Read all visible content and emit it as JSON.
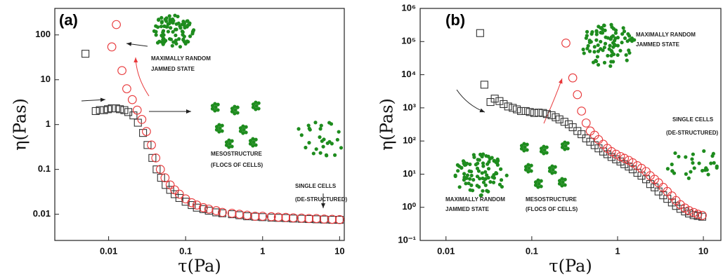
{
  "chart_data": [
    {
      "type": "scatter",
      "panel_label": "(a)",
      "x_label": "τ(Pa)",
      "y_label": "η(Pas)",
      "xscale": "log",
      "yscale": "log",
      "xlim": [
        0.002,
        11.5
      ],
      "ylim": [
        0.0026,
        390
      ],
      "xticks": [
        0.01,
        0.1,
        1,
        10
      ],
      "yticks": [
        0.01,
        0.1,
        1,
        10,
        100
      ],
      "annotations": [
        "MAXIMALLY RANDOM",
        "JAMMED STATE",
        "MESOSTRUCTURE",
        "(FLOCS OF CELLS)",
        "SINGLE CELLS",
        "(DE-STRUCTURED)"
      ],
      "series": [
        {
          "marker": "square",
          "color": "#333333",
          "x": [
            0.005,
            0.0068,
            0.0077,
            0.0087,
            0.0098,
            0.011,
            0.0125,
            0.014,
            0.016,
            0.018,
            0.021,
            0.024,
            0.028,
            0.032,
            0.037,
            0.042,
            0.048,
            0.055,
            0.063,
            0.072,
            0.083,
            0.1,
            0.12,
            0.14,
            0.17,
            0.2,
            0.25,
            0.3,
            0.4,
            0.5,
            0.63,
            0.8,
            1,
            1.3,
            1.6,
            2,
            2.5,
            3.2,
            4,
            5,
            6.3,
            8,
            10
          ],
          "values": [
            38,
            2.0,
            2.1,
            2.1,
            2.2,
            2.3,
            2.3,
            2.2,
            2.1,
            1.9,
            1.6,
            1.1,
            0.65,
            0.35,
            0.18,
            0.1,
            0.065,
            0.045,
            0.035,
            0.028,
            0.023,
            0.019,
            0.016,
            0.014,
            0.013,
            0.012,
            0.011,
            0.0105,
            0.01,
            0.0095,
            0.009,
            0.0088,
            0.0086,
            0.0084,
            0.0083,
            0.0082,
            0.008,
            0.0079,
            0.0078,
            0.0077,
            0.0076,
            0.0075,
            0.0075
          ]
        },
        {
          "marker": "circle",
          "color": "#e8383a",
          "x": [
            0.0126,
            0.011,
            0.0149,
            0.0172,
            0.0203,
            0.0235,
            0.027,
            0.031,
            0.036,
            0.041,
            0.047,
            0.054,
            0.063,
            0.072,
            0.083,
            0.1,
            0.12,
            0.14,
            0.17,
            0.2,
            0.25,
            0.3,
            0.4,
            0.5,
            0.63,
            0.8,
            1,
            1.3,
            1.6,
            2,
            2.5,
            3.2,
            4,
            5,
            6.3,
            8,
            10
          ],
          "values": [
            170,
            54,
            16,
            6.3,
            3.6,
            2.1,
            1.3,
            0.7,
            0.35,
            0.18,
            0.1,
            0.065,
            0.045,
            0.035,
            0.028,
            0.022,
            0.018,
            0.016,
            0.014,
            0.013,
            0.012,
            0.011,
            0.0105,
            0.01,
            0.0095,
            0.009,
            0.009,
            0.0088,
            0.0086,
            0.0085,
            0.0083,
            0.0082,
            0.008,
            0.008,
            0.0078,
            0.0077,
            0.0076
          ]
        }
      ]
    },
    {
      "type": "scatter",
      "panel_label": "(b)",
      "x_label": "τ(Pa)",
      "y_label": "η(Pas)",
      "xscale": "log",
      "yscale": "log",
      "xlim": [
        0.005,
        16
      ],
      "ylim": [
        0.1,
        1000000
      ],
      "xticks": [
        0.01,
        0.1,
        1,
        10
      ],
      "yticks": [
        {
          "value": 0.1,
          "label": "10⁻¹"
        },
        {
          "value": 1,
          "label": "10⁰"
        },
        {
          "value": 10,
          "label": "10¹"
        },
        {
          "value": 100,
          "label": "10²"
        },
        {
          "value": 1000,
          "label": "10³"
        },
        {
          "value": 10000,
          "label": "10⁴"
        },
        {
          "value": 100000,
          "label": "10⁵"
        },
        {
          "value": 1000000,
          "label": "10⁶"
        }
      ],
      "annotations": [
        "MAXIMALLY RANDOM",
        "JAMMED STATE",
        "SINGLE CELLS",
        "(DE-STRUCTURED)",
        "MAXIMALLY RANDOM",
        "JAMMED STATE",
        "MESOSTRUCTURE",
        "(FLOCS OF CELLS)"
      ],
      "series": [
        {
          "marker": "square",
          "color": "#333333",
          "x": [
            0.025,
            0.028,
            0.033,
            0.037,
            0.042,
            0.047,
            0.053,
            0.06,
            0.067,
            0.075,
            0.085,
            0.095,
            0.107,
            0.12,
            0.135,
            0.15,
            0.17,
            0.19,
            0.21,
            0.24,
            0.27,
            0.3,
            0.34,
            0.38,
            0.43,
            0.48,
            0.54,
            0.6,
            0.68,
            0.76,
            0.85,
            0.96,
            1.08,
            1.2,
            1.35,
            1.5,
            1.7,
            1.9,
            2.15,
            2.4,
            2.7,
            3,
            3.4,
            3.8,
            4.3,
            4.8,
            5.4,
            6.1,
            6.8,
            7.7,
            8.6,
            9.7
          ],
          "values": [
            180000,
            5000,
            1500,
            1900,
            1600,
            1300,
            1100,
            1000,
            900,
            800,
            800,
            750,
            700,
            720,
            700,
            650,
            600,
            520,
            450,
            380,
            320,
            260,
            200,
            160,
            120,
            95,
            75,
            60,
            48,
            40,
            33,
            28,
            24,
            20,
            17,
            14,
            11,
            9,
            7,
            5,
            4,
            3,
            2.3,
            1.8,
            1.4,
            1.1,
            0.9,
            0.75,
            0.65,
            0.58,
            0.55,
            0.52
          ]
        },
        {
          "marker": "circle",
          "color": "#e8383a",
          "x": [
            0.25,
            0.3,
            0.34,
            0.38,
            0.43,
            0.48,
            0.54,
            0.6,
            0.68,
            0.76,
            0.85,
            0.96,
            1.08,
            1.2,
            1.35,
            1.5,
            1.7,
            1.9,
            2.15,
            2.4,
            2.7,
            3,
            3.4,
            3.8,
            4.3,
            4.8,
            5.4,
            6.1,
            6.8,
            7.7,
            8.6,
            9.7
          ],
          "values": [
            90000,
            8000,
            2500,
            800,
            350,
            200,
            150,
            110,
            80,
            60,
            48,
            40,
            34,
            30,
            26,
            22,
            18,
            15,
            12,
            9,
            7,
            5.5,
            4,
            3,
            2.2,
            1.6,
            1.2,
            0.95,
            0.8,
            0.7,
            0.62,
            0.57
          ]
        }
      ]
    }
  ]
}
